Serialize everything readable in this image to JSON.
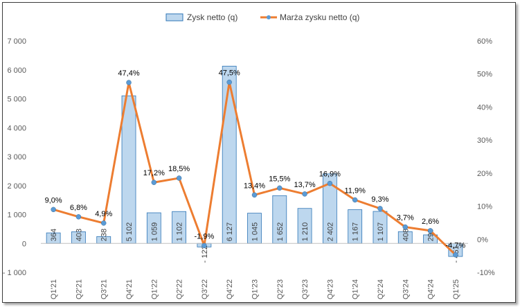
{
  "chart_data": {
    "type": "bar+line",
    "categories": [
      "Q1'21",
      "Q2'21",
      "Q3'21",
      "Q4'21",
      "Q1'22",
      "Q2'22",
      "Q3'22",
      "Q4'22",
      "Q1'23",
      "Q2'23",
      "Q3'23",
      "Q4'23",
      "Q1'24",
      "Q2'24",
      "Q3'24",
      "Q4'24",
      "Q1'25"
    ],
    "series": [
      {
        "name": "Zysk netto (q)",
        "type": "bar",
        "axis": "left",
        "color": "#bdd7ee",
        "border_color": "#2e75b6",
        "values": [
          364,
          403,
          238,
          5102,
          1059,
          1102,
          -122,
          6127,
          1045,
          1652,
          1210,
          2402,
          1167,
          1107,
          408,
          295,
          -451
        ],
        "labels": [
          "364",
          "403",
          "238",
          "5 102",
          "1 059",
          "1 102",
          "- 122",
          "6 127",
          "1 045",
          "1 652",
          "1 210",
          "2 402",
          "1 167",
          "1 107",
          "408",
          "295",
          "- 451"
        ]
      },
      {
        "name": "Marża zysku netto (q)",
        "type": "line",
        "axis": "right",
        "color": "#ed7d31",
        "marker_color": "#5b9bd5",
        "values": [
          9.0,
          6.8,
          4.9,
          47.4,
          17.2,
          18.5,
          -1.9,
          47.5,
          13.4,
          15.5,
          13.7,
          16.9,
          11.9,
          9.3,
          3.7,
          2.6,
          -4.7
        ],
        "labels": [
          "9,0%",
          "6,8%",
          "4,9%",
          "47,4%",
          "17,2%",
          "18,5%",
          "-1,9%",
          "47,5%",
          "13,4%",
          "15,5%",
          "13,7%",
          "16,9%",
          "11,9%",
          "9,3%",
          "3,7%",
          "2,6%",
          "-4,7%"
        ]
      }
    ],
    "y_left": {
      "min": -1000,
      "max": 7000,
      "ticks": [
        -1000,
        0,
        1000,
        2000,
        3000,
        4000,
        5000,
        6000,
        7000
      ],
      "tick_labels": [
        "- 1 000",
        "0",
        "1 000",
        "2 000",
        "3 000",
        "4 000",
        "5 000",
        "6 000",
        "7 000"
      ]
    },
    "y_right": {
      "min": -10,
      "max": 60,
      "ticks": [
        -10,
        0,
        10,
        20,
        30,
        40,
        50,
        60
      ],
      "tick_labels": [
        "-10%",
        "0%",
        "10%",
        "20%",
        "30%",
        "40%",
        "50%",
        "60%"
      ]
    },
    "grid": false,
    "legend": "top-center"
  }
}
